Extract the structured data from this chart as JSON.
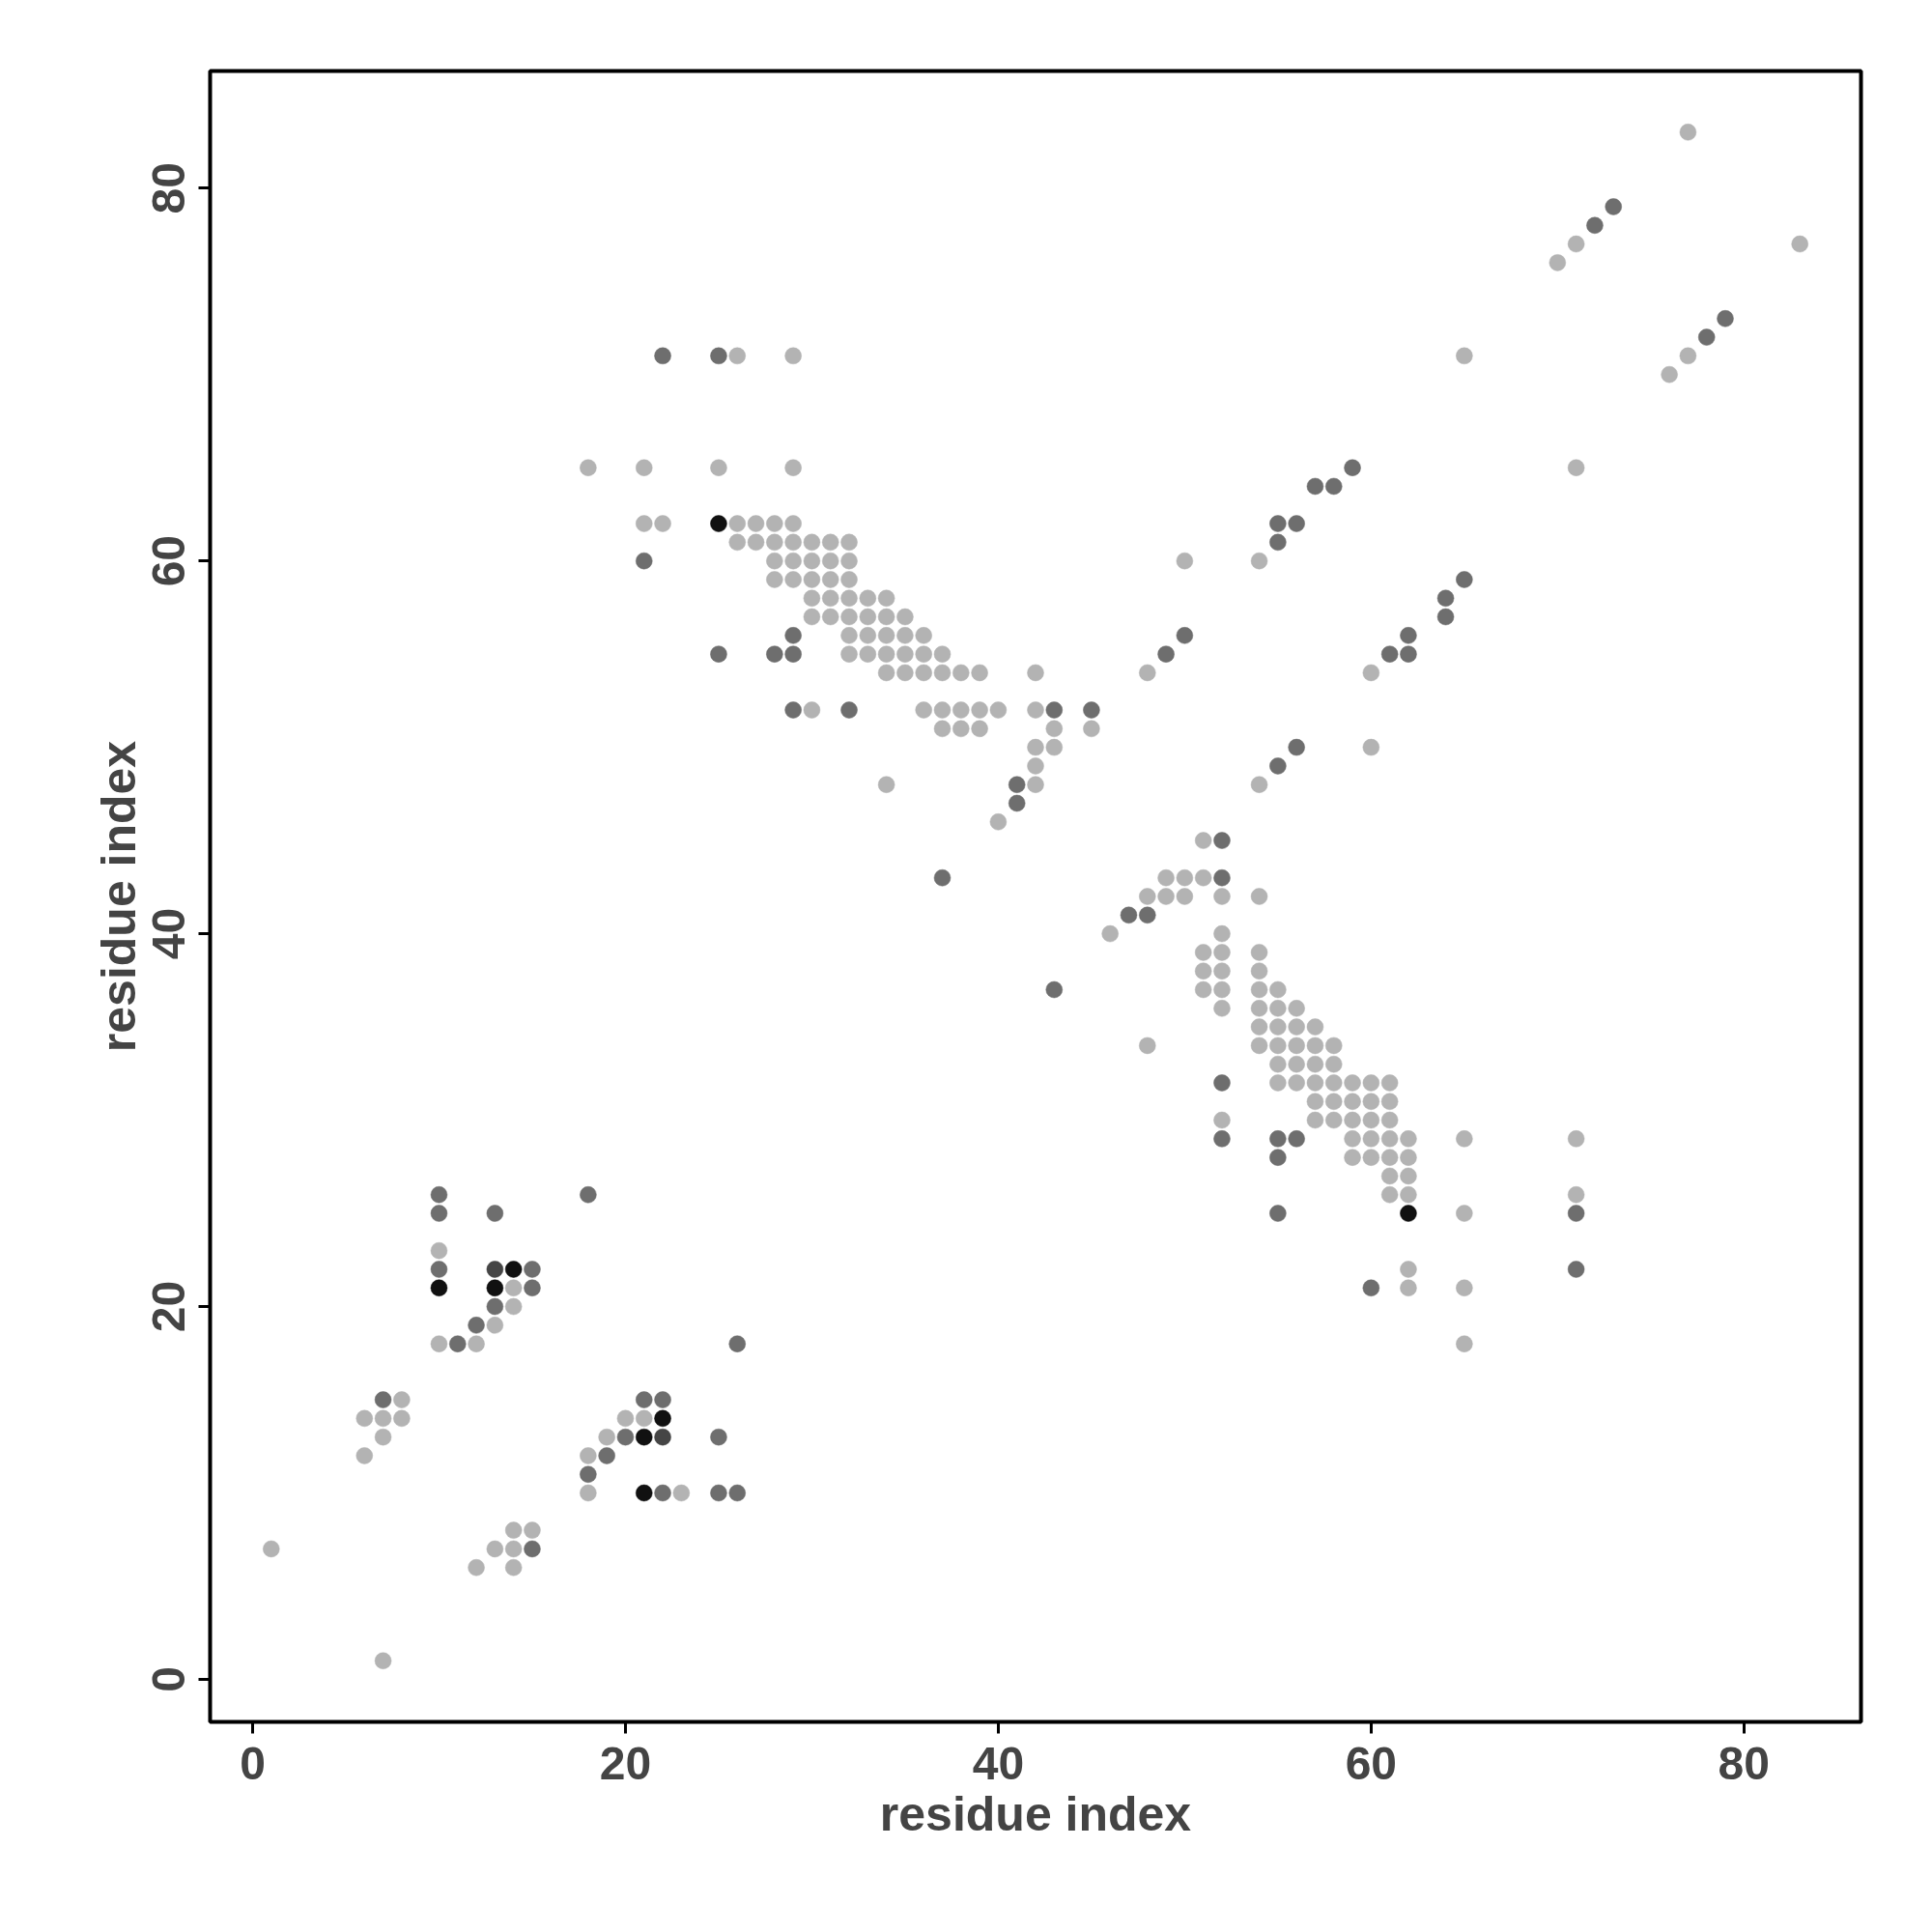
{
  "chart_data": {
    "type": "scatter",
    "xlabel": "residue index",
    "ylabel": "residue index",
    "xlim": [
      -2.28,
      86.28
    ],
    "ylim": [
      -2.28,
      86.28
    ],
    "xticks": [
      0,
      20,
      40,
      60,
      80
    ],
    "yticks": [
      0,
      20,
      40,
      60,
      80
    ],
    "marker": "circle",
    "series": [
      {
        "color": "#b3b3b3",
        "x": [
          7,
          1,
          13,
          14,
          12,
          14,
          14,
          15,
          18,
          23,
          6,
          18,
          7,
          19,
          6,
          7,
          8,
          20,
          21,
          8,
          10,
          12,
          65,
          13,
          14,
          14,
          62,
          65,
          62,
          10,
          65,
          62,
          71,
          61,
          61,
          62,
          59,
          60,
          61,
          62,
          59,
          60,
          61,
          62,
          65,
          71,
          52,
          57,
          58,
          59,
          60,
          61,
          57,
          58,
          59,
          60,
          61,
          55,
          56,
          57,
          58,
          59,
          60,
          61,
          55,
          56,
          57,
          58,
          48,
          54,
          55,
          56,
          57,
          58,
          54,
          55,
          56,
          57,
          52,
          54,
          55,
          56,
          51,
          52,
          54,
          55,
          51,
          52,
          54,
          51,
          52,
          54,
          46,
          52,
          48,
          49,
          50,
          52,
          54,
          49,
          50,
          51,
          51,
          40,
          34,
          42,
          54,
          42,
          42,
          43,
          60,
          37,
          38,
          39,
          43,
          45,
          30,
          36,
          37,
          38,
          39,
          40,
          42,
          34,
          35,
          36,
          37,
          38,
          39,
          42,
          48,
          60,
          32,
          33,
          34,
          35,
          36,
          37,
          32,
          33,
          34,
          35,
          36,
          30,
          31,
          32,
          33,
          34,
          35,
          30,
          31,
          32,
          33,
          34,
          28,
          29,
          30,
          31,
          32,
          28,
          29,
          30,
          31,
          32,
          50,
          54,
          26,
          27,
          28,
          29,
          30,
          31,
          32,
          21,
          22,
          26,
          27,
          28,
          29,
          18,
          21,
          25,
          29,
          71,
          26,
          29,
          65,
          70,
          71,
          83,
          76,
          77,
          77
        ],
        "values": [
          1,
          7,
          7,
          7,
          6,
          6,
          8,
          8,
          10,
          10,
          12,
          12,
          13,
          13,
          14,
          14,
          14,
          14,
          14,
          15,
          18,
          18,
          18,
          19,
          20,
          21,
          21,
          21,
          22,
          23,
          25,
          26,
          26,
          26,
          27,
          27,
          28,
          28,
          28,
          28,
          29,
          29,
          29,
          29,
          29,
          29,
          30,
          30,
          30,
          30,
          30,
          30,
          31,
          31,
          31,
          31,
          31,
          32,
          32,
          32,
          32,
          32,
          32,
          32,
          33,
          33,
          33,
          33,
          34,
          34,
          34,
          34,
          34,
          34,
          35,
          35,
          35,
          35,
          36,
          36,
          36,
          36,
          37,
          37,
          37,
          37,
          38,
          38,
          38,
          39,
          39,
          39,
          40,
          40,
          42,
          42,
          42,
          42,
          42,
          43,
          43,
          43,
          45,
          46,
          48,
          48,
          48,
          49,
          50,
          50,
          50,
          51,
          51,
          51,
          51,
          51,
          52,
          52,
          52,
          52,
          52,
          52,
          52,
          54,
          54,
          54,
          54,
          54,
          54,
          54,
          54,
          54,
          55,
          55,
          55,
          55,
          55,
          55,
          56,
          56,
          56,
          56,
          56,
          57,
          57,
          57,
          57,
          57,
          57,
          58,
          58,
          58,
          58,
          58,
          59,
          59,
          59,
          59,
          59,
          60,
          60,
          60,
          60,
          60,
          60,
          60,
          61,
          61,
          61,
          61,
          61,
          61,
          61,
          62,
          62,
          62,
          62,
          62,
          62,
          65,
          65,
          65,
          65,
          65,
          71,
          71,
          71,
          76,
          77,
          77,
          70,
          71,
          83
        ]
      },
      {
        "color": "#6e6e6e",
        "x": [
          15,
          22,
          25,
          26,
          18,
          19,
          20,
          25,
          7,
          21,
          22,
          11,
          26,
          12,
          13,
          15,
          60,
          10,
          15,
          71,
          10,
          13,
          55,
          71,
          10,
          18,
          55,
          52,
          55,
          56,
          52,
          43,
          47,
          48,
          52,
          37,
          52,
          41,
          41,
          55,
          56,
          43,
          45,
          32,
          29,
          25,
          28,
          29,
          49,
          61,
          62,
          29,
          50,
          62,
          64,
          64,
          65,
          21,
          55,
          55,
          56,
          57,
          58,
          59,
          22,
          25,
          72,
          73,
          78,
          79
        ],
        "values": [
          7,
          10,
          10,
          10,
          11,
          12,
          13,
          13,
          15,
          15,
          15,
          18,
          18,
          19,
          20,
          21,
          21,
          22,
          22,
          22,
          25,
          25,
          25,
          25,
          26,
          26,
          28,
          29,
          29,
          29,
          32,
          37,
          41,
          41,
          43,
          43,
          45,
          47,
          48,
          49,
          50,
          52,
          52,
          52,
          52,
          55,
          55,
          55,
          55,
          55,
          55,
          56,
          56,
          56,
          57,
          58,
          59,
          60,
          61,
          62,
          62,
          64,
          64,
          65,
          71,
          71,
          78,
          79,
          72,
          73
        ]
      },
      {
        "color": "#454545",
        "x": [
          13,
          22
        ],
        "values": [
          22,
          13
        ]
      },
      {
        "color": "#111111",
        "x": [
          10,
          13,
          14,
          21,
          21,
          22,
          25,
          62
        ],
        "values": [
          21,
          21,
          22,
          10,
          13,
          14,
          62,
          25
        ]
      }
    ]
  }
}
